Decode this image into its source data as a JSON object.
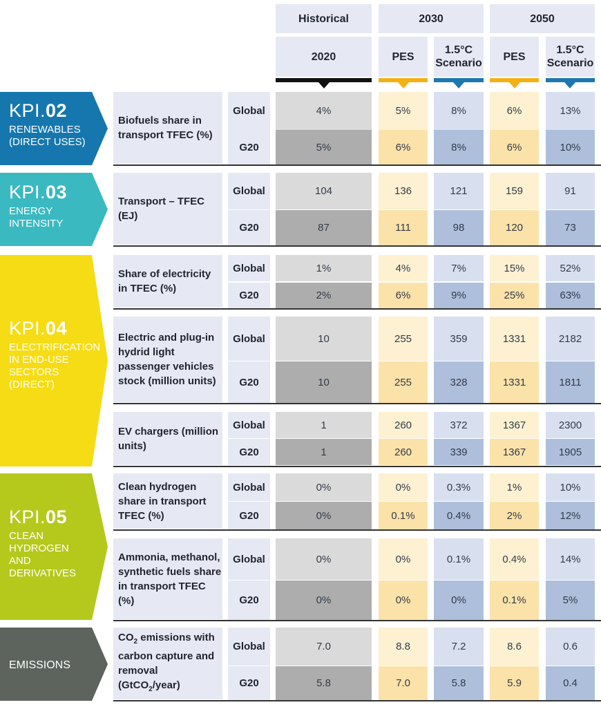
{
  "colors": {
    "header_bg": "#e6e9f3",
    "historical_marker": "#111111",
    "pes_marker": "#f5b016",
    "scenario_marker": "#1d77b0",
    "kpi02": "#1577ad",
    "kpi03": "#3ab9c1",
    "kpi04": "#f6dc14",
    "kpi05": "#b4c91c",
    "emissions": "#5d635d"
  },
  "header": {
    "historical": "Historical",
    "y2030": "2030",
    "y2050": "2050",
    "y2020": "2020",
    "pes_2030": "PES",
    "scenario_2030": "1.5°C Scenario",
    "pes_2050": "PES",
    "scenario_2050": "1.5°C Scenario"
  },
  "kpis": [
    {
      "code_prefix": "KPI.",
      "code_num": "02",
      "name": "RENEWABLES (DIRECT USES)"
    },
    {
      "code_prefix": "KPI.",
      "code_num": "03",
      "name": "ENERGY INTENSITY"
    },
    {
      "code_prefix": "KPI.",
      "code_num": "04",
      "name": "ELECTRIFICATION IN END-USE SECTORS (DIRECT)"
    },
    {
      "code_prefix": "KPI.",
      "code_num": "05",
      "name": "CLEAN HYDROGEN AND DERIVATIVES"
    },
    {
      "code_prefix": "",
      "code_num": "",
      "name": "EMISSIONS"
    }
  ],
  "scopes": {
    "global": "Global",
    "g20": "G20"
  },
  "indicators": [
    {
      "label": "Biofuels share in transport TFEC (%)",
      "rows": [
        [
          "4%",
          "5%",
          "8%",
          "6%",
          "13%"
        ],
        [
          "5%",
          "6%",
          "8%",
          "6%",
          "10%"
        ]
      ]
    },
    {
      "label": "Transport – TFEC (EJ)",
      "rows": [
        [
          "104",
          "136",
          "121",
          "159",
          "91"
        ],
        [
          "87",
          "111",
          "98",
          "120",
          "73"
        ]
      ]
    },
    {
      "label": "Share of electricity in TFEC (%)",
      "rows": [
        [
          "1%",
          "4%",
          "7%",
          "15%",
          "52%"
        ],
        [
          "2%",
          "6%",
          "9%",
          "25%",
          "63%"
        ]
      ]
    },
    {
      "label": "Electric and plug-in hydrid light passenger vehicles stock (million units)",
      "rows": [
        [
          "10",
          "255",
          "359",
          "1331",
          "2182"
        ],
        [
          "10",
          "255",
          "328",
          "1331",
          "1811"
        ]
      ]
    },
    {
      "label": "EV chargers (million units)",
      "rows": [
        [
          "1",
          "260",
          "372",
          "1367",
          "2300"
        ],
        [
          "1",
          "260",
          "339",
          "1367",
          "1905"
        ]
      ]
    },
    {
      "label": "Clean hydrogen share in transport TFEC (%)",
      "rows": [
        [
          "0%",
          "0%",
          "0.3%",
          "1%",
          "10%"
        ],
        [
          "0%",
          "0.1%",
          "0.4%",
          "2%",
          "12%"
        ]
      ]
    },
    {
      "label": "Ammonia, methanol, synthetic fuels share in transport TFEC (%)",
      "rows": [
        [
          "0%",
          "0%",
          "0.1%",
          "0.4%",
          "14%"
        ],
        [
          "0%",
          "0%",
          "0%",
          "0.1%",
          "5%"
        ]
      ]
    },
    {
      "label_pre": "CO",
      "label_sub": "2",
      "label_mid": " emissions with carbon capture and removal (GtCO",
      "label_sub2": "2",
      "label_post": "/year)",
      "rows": [
        [
          "7.0",
          "8.8",
          "7.2",
          "8.6",
          "0.6"
        ],
        [
          "5.8",
          "7.0",
          "5.8",
          "5.9",
          "0.4"
        ]
      ]
    }
  ]
}
